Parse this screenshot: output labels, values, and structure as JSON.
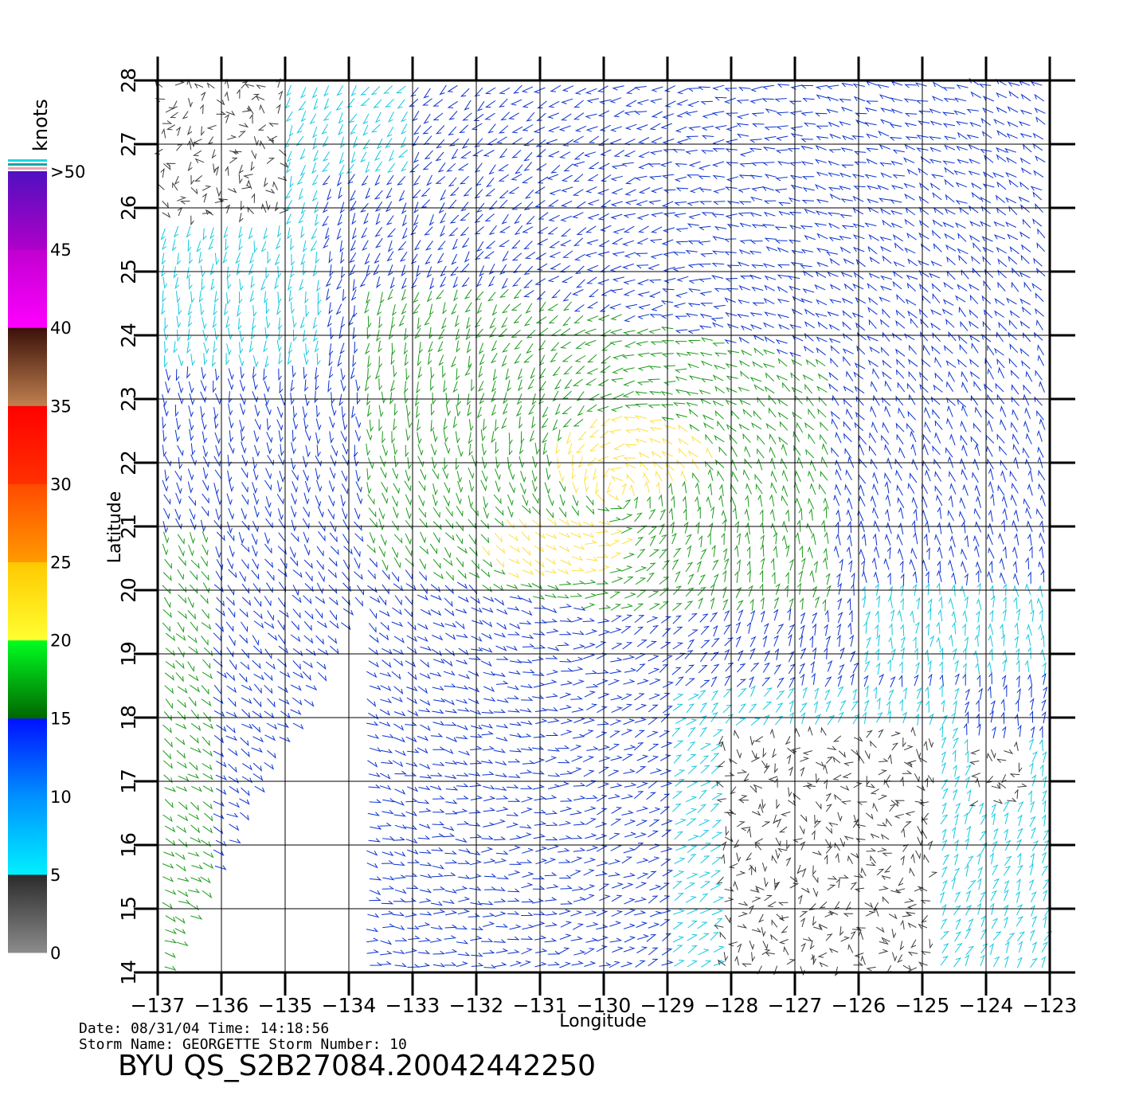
{
  "map": {
    "lon_range": [
      -137,
      -123
    ],
    "lat_range": [
      14,
      28
    ],
    "lon_ticks": [
      "−137",
      "−136",
      "−135",
      "−134",
      "−133",
      "−132",
      "−131",
      "−130",
      "−129",
      "−128",
      "−127",
      "−126",
      "−125",
      "−124",
      "−123"
    ],
    "lat_ticks": [
      "14",
      "15",
      "16",
      "17",
      "18",
      "19",
      "20",
      "21",
      "22",
      "23",
      "24",
      "25",
      "26",
      "27",
      "28"
    ],
    "xlabel": "Longitude",
    "ylabel": "Latitude",
    "grid": true
  },
  "legend": {
    "unit": "knots",
    "labels": [
      "0",
      "5",
      "10",
      "15",
      "20",
      "25",
      "30",
      "35",
      "40",
      "45",
      ">50"
    ],
    "bands": [
      {
        "from": 0,
        "to": 5,
        "colors": [
          "#8c8c8c",
          "#2a2a2a"
        ]
      },
      {
        "from": 5,
        "to": 10,
        "colors": [
          "#00f0ff",
          "#0090ff"
        ]
      },
      {
        "from": 10,
        "to": 15,
        "colors": [
          "#0090ff",
          "#0010ff"
        ]
      },
      {
        "from": 15,
        "to": 20,
        "colors": [
          "#006600",
          "#00ff20"
        ]
      },
      {
        "from": 20,
        "to": 25,
        "colors": [
          "#ffff30",
          "#ffc800"
        ]
      },
      {
        "from": 25,
        "to": 30,
        "colors": [
          "#ff9a00",
          "#ff4a00"
        ]
      },
      {
        "from": 30,
        "to": 35,
        "colors": [
          "#ff3000",
          "#ff0000"
        ]
      },
      {
        "from": 35,
        "to": 40,
        "colors": [
          "#c08050",
          "#3a1008"
        ]
      },
      {
        "from": 40,
        "to": 45,
        "colors": [
          "#ff00ff",
          "#c000d0"
        ]
      },
      {
        "from": 45,
        "to": 50,
        "colors": [
          "#b000c8",
          "#5010c0"
        ]
      }
    ]
  },
  "colors": {
    "calm": "#3a3a3a",
    "light": "#12c8e0",
    "moderate": "#0a32d0",
    "fresh": "#1a9a1a",
    "strong": "#ffe040"
  },
  "caption": {
    "line1": "Date: 08/31/04   Time: 14:18:56",
    "line2": "Storm Name: GEORGETTE   Storm Number: 10",
    "file": "BYU QS_S2B27084.20042442250"
  }
}
